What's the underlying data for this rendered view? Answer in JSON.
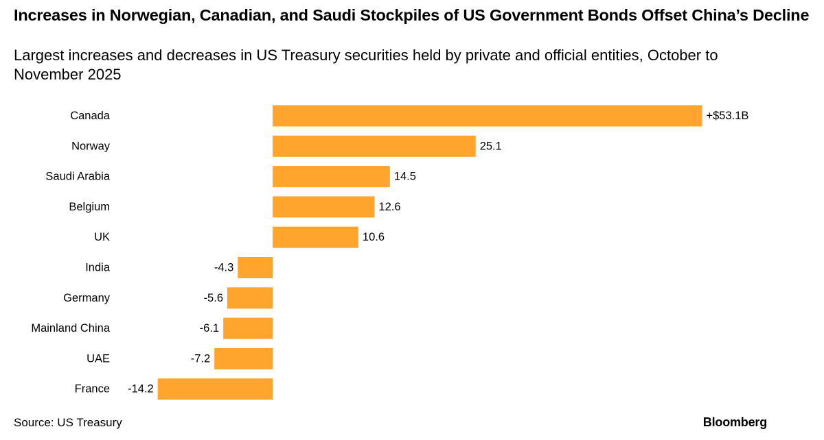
{
  "header": {
    "title": "Increases in Norwegian, Canadian, and Saudi Stockpiles of US Government Bonds Offset China’s Decline",
    "subtitle": "Largest increases and decreases in US Treasury securities held by private and official entities, October to November 2025"
  },
  "footer": {
    "source": "Source: US Treasury",
    "brand": "Bloomberg"
  },
  "colors": {
    "bar": "#FFA42C"
  },
  "chart_data": {
    "type": "bar",
    "orientation": "horizontal",
    "title": "Increases in Norwegian, Canadian, and Saudi Stockpiles of US Government Bonds Offset China’s Decline",
    "subtitle": "Largest increases and decreases in US Treasury securities held by private and official entities, October to November 2025",
    "xlabel": "",
    "ylabel": "",
    "grid": false,
    "categories": [
      "Canada",
      "Norway",
      "Saudi Arabia",
      "Belgium",
      "UK",
      "India",
      "Germany",
      "Mainland China",
      "UAE",
      "France"
    ],
    "values": [
      53.1,
      25.1,
      14.5,
      12.6,
      10.6,
      -4.3,
      -5.6,
      -6.1,
      -7.2,
      -14.2
    ],
    "value_labels": [
      "+$53.1B",
      "25.1",
      "14.5",
      "12.6",
      "10.6",
      "-4.3",
      "-5.6",
      "-6.1",
      "-7.2",
      "-14.2"
    ],
    "xlim": [
      -14.2,
      53.1
    ]
  }
}
